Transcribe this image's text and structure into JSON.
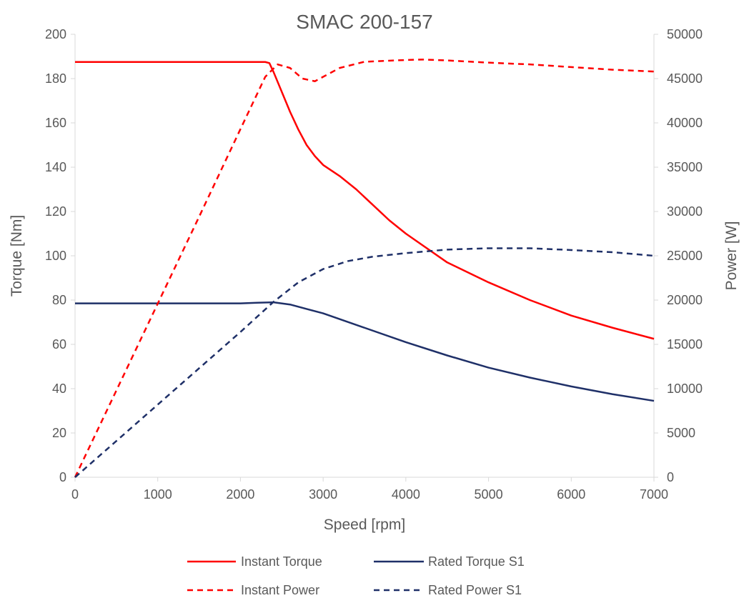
{
  "chart_data": {
    "type": "line",
    "title": "SMAC 200-157",
    "xlabel": "Speed [rpm]",
    "ylabel": "Torque [Nm]",
    "y2label": "Power [W]",
    "xlim": [
      0,
      7000
    ],
    "ylim": [
      0,
      200
    ],
    "y2lim": [
      0,
      50000
    ],
    "x_ticks": [
      0,
      1000,
      2000,
      3000,
      4000,
      5000,
      6000,
      7000
    ],
    "y_ticks": [
      0,
      20,
      40,
      60,
      80,
      100,
      120,
      140,
      160,
      180,
      200
    ],
    "y2_ticks": [
      0,
      5000,
      10000,
      15000,
      20000,
      25000,
      30000,
      35000,
      40000,
      45000,
      50000
    ],
    "grid": false,
    "legend_position": "bottom",
    "series": [
      {
        "name": "Instant Torque",
        "axis": "left",
        "color": "#ff0000",
        "dash": "solid",
        "points": [
          [
            0,
            187.5
          ],
          [
            500,
            187.5
          ],
          [
            1000,
            187.5
          ],
          [
            1500,
            187.5
          ],
          [
            2000,
            187.5
          ],
          [
            2300,
            187.5
          ],
          [
            2350,
            187
          ],
          [
            2400,
            183
          ],
          [
            2500,
            174
          ],
          [
            2600,
            165
          ],
          [
            2700,
            157
          ],
          [
            2800,
            150
          ],
          [
            2900,
            145
          ],
          [
            3000,
            141
          ],
          [
            3200,
            136
          ],
          [
            3400,
            130
          ],
          [
            3600,
            123
          ],
          [
            3800,
            116
          ],
          [
            4000,
            110
          ],
          [
            4500,
            97
          ],
          [
            5000,
            88
          ],
          [
            5500,
            80
          ],
          [
            6000,
            73
          ],
          [
            6500,
            67.5
          ],
          [
            7000,
            62.5
          ]
        ]
      },
      {
        "name": "Rated Torque S1",
        "axis": "left",
        "color": "#1f3068",
        "dash": "solid",
        "points": [
          [
            0,
            78.5
          ],
          [
            1000,
            78.5
          ],
          [
            1800,
            78.5
          ],
          [
            2000,
            78.5
          ],
          [
            2200,
            78.8
          ],
          [
            2400,
            79
          ],
          [
            2600,
            78
          ],
          [
            2800,
            76
          ],
          [
            3000,
            74
          ],
          [
            3500,
            67.5
          ],
          [
            4000,
            61
          ],
          [
            4500,
            55
          ],
          [
            5000,
            49.5
          ],
          [
            5500,
            45
          ],
          [
            6000,
            41
          ],
          [
            6500,
            37.5
          ],
          [
            7000,
            34.5
          ]
        ]
      },
      {
        "name": "Instant Power",
        "axis": "right",
        "color": "#ff0000",
        "dash": "dashed",
        "points": [
          [
            0,
            0
          ],
          [
            500,
            9800
          ],
          [
            1000,
            19600
          ],
          [
            1500,
            29400
          ],
          [
            2000,
            39300
          ],
          [
            2300,
            45200
          ],
          [
            2450,
            46600
          ],
          [
            2600,
            46200
          ],
          [
            2750,
            45000
          ],
          [
            2900,
            44700
          ],
          [
            3000,
            45200
          ],
          [
            3200,
            46200
          ],
          [
            3500,
            46900
          ],
          [
            4000,
            47100
          ],
          [
            4200,
            47150
          ],
          [
            4500,
            47050
          ],
          [
            5000,
            46800
          ],
          [
            5500,
            46600
          ],
          [
            6000,
            46300
          ],
          [
            6500,
            46000
          ],
          [
            7000,
            45800
          ]
        ]
      },
      {
        "name": "Rated Power S1",
        "axis": "right",
        "color": "#1f3068",
        "dash": "dashed",
        "points": [
          [
            0,
            0
          ],
          [
            500,
            4100
          ],
          [
            1000,
            8200
          ],
          [
            1500,
            12300
          ],
          [
            2000,
            16400
          ],
          [
            2400,
            19800
          ],
          [
            2700,
            22000
          ],
          [
            3000,
            23500
          ],
          [
            3300,
            24400
          ],
          [
            3600,
            24900
          ],
          [
            4000,
            25300
          ],
          [
            4500,
            25700
          ],
          [
            5000,
            25850
          ],
          [
            5500,
            25850
          ],
          [
            6000,
            25650
          ],
          [
            6500,
            25400
          ],
          [
            7000,
            25000
          ]
        ]
      }
    ]
  }
}
